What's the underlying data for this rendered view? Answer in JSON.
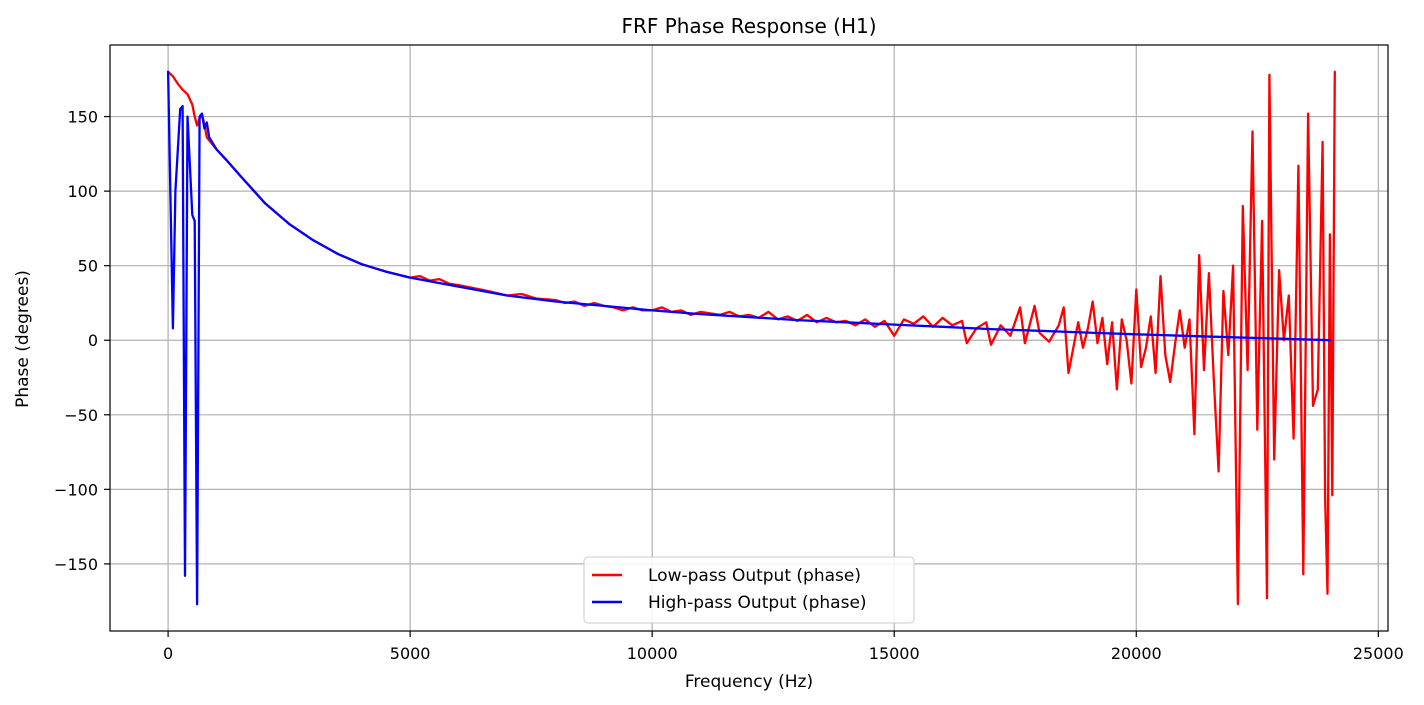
{
  "chart_data": {
    "type": "line",
    "title": "FRF Phase Response (H1)",
    "xlabel": "Frequency (Hz)",
    "ylabel": "Phase (degrees)",
    "xlim": [
      -1200,
      25200
    ],
    "ylim": [
      -195,
      198
    ],
    "xticks": [
      0,
      5000,
      10000,
      15000,
      20000,
      25000
    ],
    "yticks": [
      -150,
      -100,
      -50,
      0,
      50,
      100,
      150
    ],
    "grid": true,
    "legend_position": "lower center",
    "series": [
      {
        "name": "Low-pass Output (phase)",
        "color": "#ff0000",
        "points": [
          [
            0,
            180
          ],
          [
            100,
            177
          ],
          [
            200,
            172
          ],
          [
            300,
            168
          ],
          [
            400,
            165
          ],
          [
            500,
            158
          ],
          [
            550,
            150
          ],
          [
            600,
            144
          ],
          [
            650,
            149
          ],
          [
            700,
            151
          ],
          [
            750,
            145
          ],
          [
            800,
            136
          ],
          [
            1000,
            128
          ],
          [
            1200,
            121
          ],
          [
            1500,
            110
          ],
          [
            2000,
            92
          ],
          [
            2500,
            78
          ],
          [
            3000,
            67
          ],
          [
            3500,
            58
          ],
          [
            4000,
            51
          ],
          [
            4500,
            46
          ],
          [
            5000,
            42
          ],
          [
            5200,
            43
          ],
          [
            5400,
            40
          ],
          [
            5600,
            41
          ],
          [
            5800,
            38
          ],
          [
            6000,
            37
          ],
          [
            6300,
            35
          ],
          [
            6600,
            33
          ],
          [
            7000,
            30
          ],
          [
            7300,
            31
          ],
          [
            7600,
            28
          ],
          [
            8000,
            27
          ],
          [
            8200,
            25
          ],
          [
            8400,
            26
          ],
          [
            8600,
            23
          ],
          [
            8800,
            25
          ],
          [
            9000,
            23
          ],
          [
            9200,
            22
          ],
          [
            9400,
            20
          ],
          [
            9600,
            22
          ],
          [
            9800,
            20
          ],
          [
            10000,
            20
          ],
          [
            10200,
            22
          ],
          [
            10400,
            19
          ],
          [
            10600,
            20
          ],
          [
            10800,
            17
          ],
          [
            11000,
            19
          ],
          [
            11200,
            18
          ],
          [
            11400,
            17
          ],
          [
            11600,
            19
          ],
          [
            11800,
            16
          ],
          [
            12000,
            17
          ],
          [
            12200,
            15
          ],
          [
            12400,
            19
          ],
          [
            12600,
            14
          ],
          [
            12800,
            16
          ],
          [
            13000,
            13
          ],
          [
            13200,
            17
          ],
          [
            13400,
            12
          ],
          [
            13600,
            15
          ],
          [
            13800,
            12
          ],
          [
            14000,
            13
          ],
          [
            14200,
            10
          ],
          [
            14400,
            14
          ],
          [
            14600,
            9
          ],
          [
            14800,
            13
          ],
          [
            15000,
            3
          ],
          [
            15200,
            14
          ],
          [
            15400,
            11
          ],
          [
            15600,
            16
          ],
          [
            15800,
            9
          ],
          [
            16000,
            15
          ],
          [
            16200,
            10
          ],
          [
            16400,
            13
          ],
          [
            16500,
            -2
          ],
          [
            16700,
            8
          ],
          [
            16900,
            12
          ],
          [
            17000,
            -3
          ],
          [
            17200,
            10
          ],
          [
            17400,
            3
          ],
          [
            17600,
            22
          ],
          [
            17700,
            -2
          ],
          [
            17900,
            23
          ],
          [
            18000,
            5
          ],
          [
            18200,
            -1
          ],
          [
            18400,
            10
          ],
          [
            18500,
            22
          ],
          [
            18600,
            -22
          ],
          [
            18800,
            12
          ],
          [
            18900,
            -5
          ],
          [
            19000,
            8
          ],
          [
            19100,
            26
          ],
          [
            19200,
            -2
          ],
          [
            19300,
            15
          ],
          [
            19400,
            -16
          ],
          [
            19500,
            12
          ],
          [
            19600,
            -33
          ],
          [
            19700,
            14
          ],
          [
            19800,
            0
          ],
          [
            19900,
            -29
          ],
          [
            20000,
            34
          ],
          [
            20100,
            -18
          ],
          [
            20200,
            -5
          ],
          [
            20300,
            16
          ],
          [
            20400,
            -22
          ],
          [
            20500,
            43
          ],
          [
            20600,
            -10
          ],
          [
            20700,
            -28
          ],
          [
            20800,
            -3
          ],
          [
            20900,
            20
          ],
          [
            21000,
            -5
          ],
          [
            21100,
            14
          ],
          [
            21200,
            -63
          ],
          [
            21300,
            57
          ],
          [
            21400,
            -20
          ],
          [
            21500,
            45
          ],
          [
            21600,
            -25
          ],
          [
            21700,
            -88
          ],
          [
            21800,
            33
          ],
          [
            21900,
            -10
          ],
          [
            22000,
            50
          ],
          [
            22100,
            -177
          ],
          [
            22200,
            90
          ],
          [
            22300,
            -20
          ],
          [
            22400,
            140
          ],
          [
            22500,
            -60
          ],
          [
            22600,
            80
          ],
          [
            22700,
            -173
          ],
          [
            22750,
            178
          ],
          [
            22850,
            -80
          ],
          [
            22950,
            47
          ],
          [
            23050,
            0
          ],
          [
            23150,
            30
          ],
          [
            23250,
            -66
          ],
          [
            23350,
            117
          ],
          [
            23450,
            -157
          ],
          [
            23550,
            152
          ],
          [
            23650,
            -44
          ],
          [
            23750,
            -33
          ],
          [
            23850,
            133
          ],
          [
            23900,
            -105
          ],
          [
            23950,
            -170
          ],
          [
            24000,
            71
          ],
          [
            24050,
            -104
          ],
          [
            24100,
            180
          ]
        ]
      },
      {
        "name": "High-pass Output (phase)",
        "color": "#0000ff",
        "points": [
          [
            0,
            180
          ],
          [
            100,
            8
          ],
          [
            150,
            100
          ],
          [
            250,
            155
          ],
          [
            300,
            157
          ],
          [
            350,
            -158
          ],
          [
            400,
            150
          ],
          [
            500,
            84
          ],
          [
            550,
            80
          ],
          [
            600,
            -177
          ],
          [
            650,
            150
          ],
          [
            700,
            152
          ],
          [
            750,
            142
          ],
          [
            800,
            146
          ],
          [
            850,
            136
          ],
          [
            1000,
            128
          ],
          [
            1200,
            121
          ],
          [
            1500,
            110
          ],
          [
            2000,
            92
          ],
          [
            2500,
            78
          ],
          [
            3000,
            67
          ],
          [
            3500,
            58
          ],
          [
            4000,
            51
          ],
          [
            4500,
            46
          ],
          [
            5000,
            42
          ],
          [
            6000,
            36
          ],
          [
            7000,
            30
          ],
          [
            8000,
            26
          ],
          [
            9000,
            23
          ],
          [
            10000,
            20
          ],
          [
            11000,
            17.5
          ],
          [
            12000,
            15.5
          ],
          [
            13000,
            13.5
          ],
          [
            14000,
            12
          ],
          [
            15000,
            10.5
          ],
          [
            16000,
            9
          ],
          [
            17000,
            7.5
          ],
          [
            18000,
            6.3
          ],
          [
            19000,
            5.1
          ],
          [
            20000,
            4
          ],
          [
            21000,
            3
          ],
          [
            22000,
            2
          ],
          [
            23000,
            1
          ],
          [
            24000,
            0
          ]
        ]
      }
    ]
  }
}
